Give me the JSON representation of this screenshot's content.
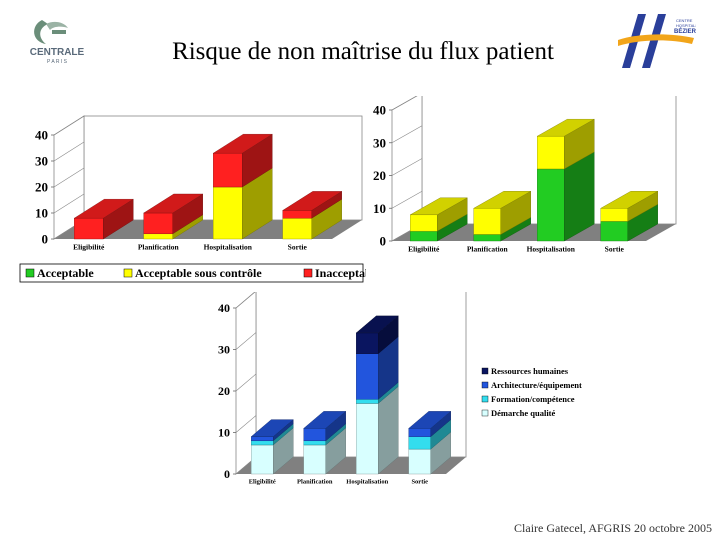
{
  "header": {
    "title": "Risque de non maîtrise du flux patient",
    "logo_left_text": "CENTRALE",
    "logo_left_sub": "P A R I S",
    "logo_right_text": "CENTRE HOSPITALIER BÉZIERS"
  },
  "footer": {
    "credit": "Claire Gatecel, AFGRIS 20 octobre 2005"
  },
  "chart_data": [
    {
      "type": "bar",
      "stacked": true,
      "categories": [
        "Eligibilité",
        "Planification",
        "Hospitalisation",
        "Sortie"
      ],
      "ylim": [
        0,
        40
      ],
      "yticks": [
        0,
        10,
        20,
        30,
        40
      ],
      "series": [
        {
          "name": "Acceptable",
          "color": "#22cc22",
          "values": [
            0,
            0,
            0,
            0
          ]
        },
        {
          "name": "Acceptable sous contrôle",
          "color": "#ffff00",
          "values": [
            0,
            2,
            20,
            8
          ]
        },
        {
          "name": "Inacceptable",
          "color": "#ff2020",
          "values": [
            8,
            8,
            13,
            3
          ]
        }
      ],
      "legend": "bottom"
    },
    {
      "type": "bar",
      "stacked": true,
      "categories": [
        "Eligibilité",
        "Planification",
        "Hospitalisation",
        "Sortie"
      ],
      "ylim": [
        0,
        40
      ],
      "yticks": [
        0,
        10,
        20,
        30,
        40
      ],
      "series": [
        {
          "name": "Acceptable",
          "color": "#22cc22",
          "values": [
            3,
            2,
            22,
            6
          ]
        },
        {
          "name": "Acceptable sous contrôle",
          "color": "#ffff00",
          "values": [
            5,
            8,
            10,
            4
          ]
        },
        {
          "name": "Inacceptable",
          "color": "#ff2020",
          "values": [
            0,
            0,
            0,
            0
          ]
        }
      ]
    },
    {
      "type": "bar",
      "stacked": true,
      "categories": [
        "Eligibilité",
        "Planification",
        "Hospitalisation",
        "Sortie"
      ],
      "ylim": [
        0,
        40
      ],
      "yticks": [
        0,
        10,
        20,
        30,
        40
      ],
      "series": [
        {
          "name": "Démarche qualité",
          "color": "#d8ffff",
          "values": [
            7,
            7,
            17,
            6
          ]
        },
        {
          "name": "Formation/compétence",
          "color": "#33ddee",
          "values": [
            1,
            1,
            1,
            3
          ]
        },
        {
          "name": "Architecture/équipement",
          "color": "#2255dd",
          "values": [
            1,
            3,
            11,
            2
          ]
        },
        {
          "name": "Ressources humaines",
          "color": "#0a1560",
          "values": [
            0,
            0,
            5,
            0
          ]
        }
      ],
      "legend": "right"
    }
  ]
}
